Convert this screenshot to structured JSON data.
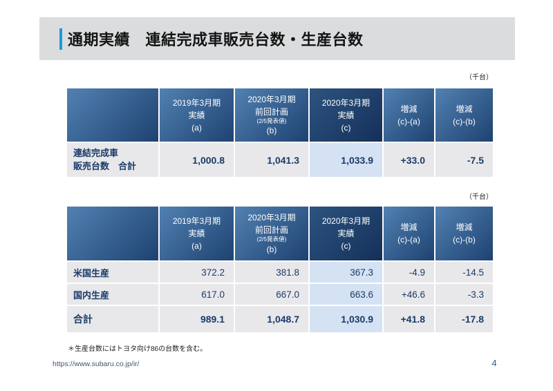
{
  "slide": {
    "title": "通期実績　連結完成車販売台数・生産台数",
    "footnote": "＊生産台数にはトヨタ向け86の台数を含む。",
    "url": "https://www.subaru.co.jp/ir/",
    "page_number": "4"
  },
  "unit_label": "（千台）",
  "header": {
    "y2019_actual": [
      "2019年3月期",
      "実績",
      "(a)"
    ],
    "y2020_plan": [
      "2020年3月期",
      "前回計画",
      "(2/5発表値)",
      "(b)"
    ],
    "y2020_actual": [
      "2020年3月期",
      "実績",
      "(c)"
    ],
    "delta_ca": [
      "増減",
      "(c)-(a)"
    ],
    "delta_cb": [
      "増減",
      "(c)-(b)"
    ]
  },
  "sales_table": {
    "row": {
      "label_line1": "連結完成車",
      "label_line2": "販売台数　合計",
      "a": "1,000.8",
      "b": "1,041.3",
      "c": "1,033.9",
      "diff_a": "+33.0",
      "diff_b": "-7.5"
    }
  },
  "production_table": {
    "rows": [
      {
        "label": "米国生産",
        "a": "372.2",
        "b": "381.8",
        "c": "367.3",
        "diff_a": "-4.9",
        "diff_b": "-14.5"
      },
      {
        "label": "国内生産",
        "a": "617.0",
        "b": "667.0",
        "c": "663.6",
        "diff_a": "+46.6",
        "diff_b": "-3.3"
      },
      {
        "label": "合計",
        "a": "989.1",
        "b": "1,048.7",
        "c": "1,030.9",
        "diff_a": "+41.8",
        "diff_b": "-17.8"
      }
    ]
  },
  "colors": {
    "accent_blue": "#189cd8",
    "header_gradient_start": "#5181b2",
    "header_gradient_end": "#1e4271",
    "header_dark_start": "#2d547f",
    "header_dark_end": "#14305a",
    "row_background": "#e8e8ea",
    "highlight_cell": "#d5e2f3",
    "number_text": "#1a3a69"
  }
}
